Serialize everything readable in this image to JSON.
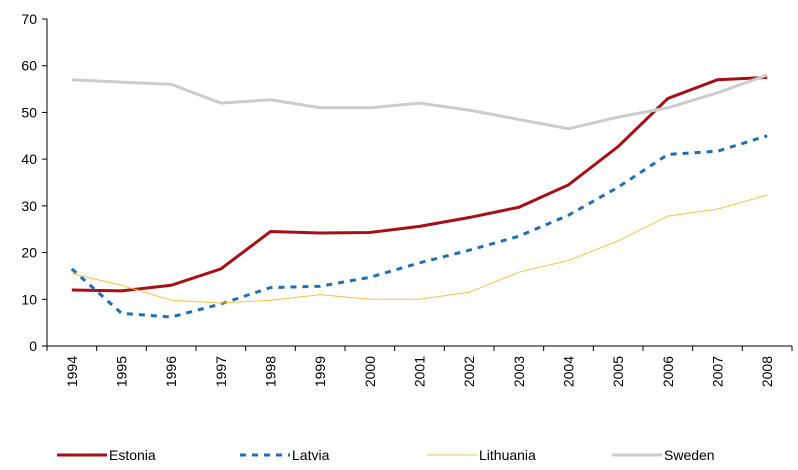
{
  "chart_data": {
    "type": "line",
    "categories": [
      "1994",
      "1995",
      "1996",
      "1997",
      "1998",
      "1999",
      "2000",
      "2001",
      "2002",
      "2003",
      "2004",
      "2005",
      "2006",
      "2007",
      "2008"
    ],
    "series": [
      {
        "name": "Estonia",
        "color": "#a50f15",
        "style": "solid",
        "width": 3,
        "values": [
          12,
          11.8,
          13,
          16.5,
          24.5,
          24.2,
          24.3,
          25.6,
          27.5,
          29.7,
          34.5,
          42.7,
          53,
          57,
          57.5
        ]
      },
      {
        "name": "Latvia",
        "color": "#1f6fb4",
        "style": "dashed",
        "width": 3,
        "values": [
          16.5,
          7,
          6.2,
          9,
          12.5,
          12.8,
          14.7,
          17.8,
          20.5,
          23.5,
          28,
          34,
          41,
          41.7,
          45
        ]
      },
      {
        "name": "Lithuania",
        "color": "#f5c242",
        "style": "solid",
        "width": 1,
        "values": [
          15.5,
          13,
          9.8,
          9.2,
          9.8,
          11,
          10,
          10,
          11.5,
          15.8,
          18.3,
          22.5,
          27.8,
          29.3,
          32.3
        ]
      },
      {
        "name": "Sweden",
        "color": "#cccccc",
        "style": "solid",
        "width": 3,
        "values": [
          57,
          56.5,
          56,
          52,
          52.7,
          51,
          51,
          52,
          50.5,
          48.5,
          46.5,
          49,
          51,
          54.2,
          58
        ]
      }
    ],
    "ylim": [
      0,
      70
    ],
    "yticks": [
      0,
      10,
      20,
      30,
      40,
      50,
      60,
      70
    ],
    "legend": "bottom"
  }
}
